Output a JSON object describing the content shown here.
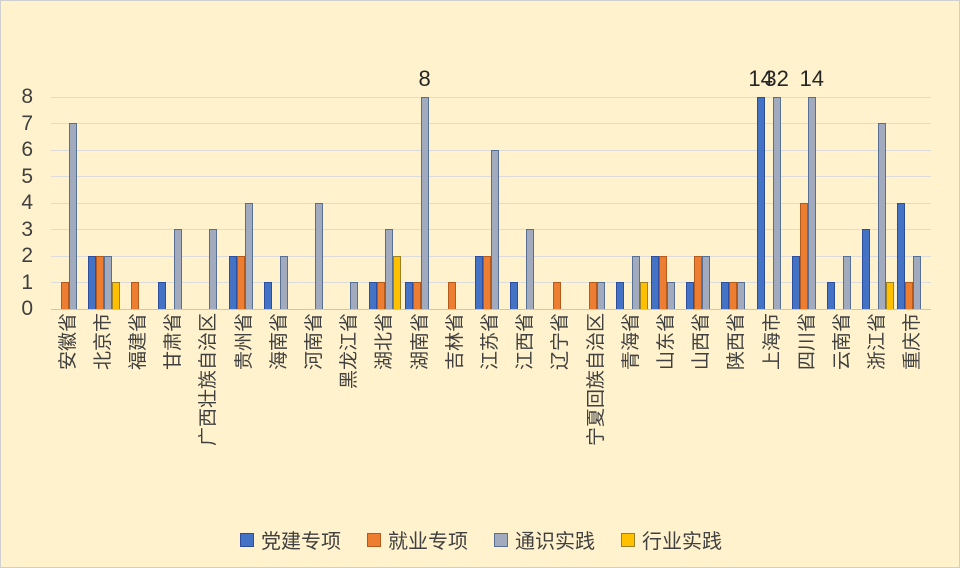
{
  "colors": {
    "background": "#FFF2CC",
    "gridline": "#DCDCDC",
    "axis_text": "#404040",
    "data_label_text": "#262626"
  },
  "chart_data": {
    "type": "bar",
    "title": "",
    "xlabel": "",
    "ylabel": "",
    "ylim": [
      0,
      8
    ],
    "yticks": [
      0,
      1,
      2,
      3,
      4,
      5,
      6,
      7,
      8
    ],
    "grid": "horizontal",
    "legend_position": "bottom",
    "categories": [
      "安徽省",
      "北京市",
      "福建省",
      "甘肃省",
      "广西壮族自治区",
      "贵州省",
      "海南省",
      "河南省",
      "黑龙江省",
      "湖北省",
      "湖南省",
      "吉林省",
      "江苏省",
      "江西省",
      "辽宁省",
      "宁夏回族自治区",
      "青海省",
      "山东省",
      "山西省",
      "陕西省",
      "上海市",
      "四川省",
      "云南省",
      "浙江省",
      "重庆市"
    ],
    "series": [
      {
        "name": "党建专项",
        "color": "#4472C4",
        "border": "#2B4F9E",
        "values": [
          0,
          2,
          0,
          1,
          0,
          2,
          1,
          0,
          0,
          1,
          1,
          0,
          2,
          1,
          0,
          0,
          1,
          2,
          1,
          1,
          14,
          2,
          1,
          3,
          4
        ]
      },
      {
        "name": "就业专项",
        "color": "#ED7D31",
        "border": "#B55A1D",
        "values": [
          1,
          2,
          1,
          0,
          0,
          2,
          0,
          0,
          0,
          1,
          1,
          1,
          2,
          0,
          1,
          1,
          0,
          2,
          2,
          1,
          0,
          4,
          0,
          0,
          1
        ]
      },
      {
        "name": "通识实践",
        "color": "#A2ABBD",
        "border": "#566F94",
        "values": [
          7,
          2,
          0,
          3,
          3,
          4,
          2,
          4,
          1,
          3,
          8,
          0,
          6,
          3,
          0,
          1,
          2,
          1,
          2,
          1,
          32,
          14,
          2,
          7,
          2
        ]
      },
      {
        "name": "行业实践",
        "color": "#FFC000",
        "border": "#9C8023",
        "values": [
          0,
          1,
          0,
          0,
          0,
          0,
          0,
          0,
          0,
          2,
          0,
          0,
          0,
          0,
          0,
          0,
          1,
          0,
          0,
          0,
          0,
          0,
          0,
          1,
          0
        ]
      }
    ],
    "annotations": [
      {
        "category": "湖南省",
        "series": "通识实践",
        "label": "8"
      },
      {
        "category": "上海市",
        "series": "党建专项",
        "label": "14"
      },
      {
        "category": "上海市",
        "series": "通识实践",
        "label": "32"
      },
      {
        "category": "四川省",
        "series": "通识实践",
        "label": "14"
      }
    ]
  }
}
